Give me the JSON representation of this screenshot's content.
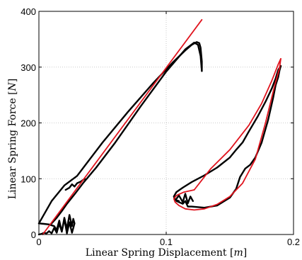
{
  "chart_data": {
    "type": "line",
    "title": "",
    "xlabel": "Linear Spring Displacement [m]",
    "ylabel": "Linear Spring Force [N]",
    "xlabel_parts": {
      "prefix": "Linear Spring Displacement [",
      "unit": "m",
      "suffix": "]"
    },
    "ylabel_parts": {
      "prefix": "Linear Spring Force [",
      "unit": "N",
      "suffix": "]"
    },
    "xlim": [
      0,
      0.2
    ],
    "ylim": [
      0,
      400
    ],
    "xticks": [
      0,
      0.1,
      0.2
    ],
    "xtick_labels": [
      "0",
      "0.1",
      "0.2"
    ],
    "yticks": [
      0,
      100,
      200,
      300,
      400
    ],
    "ytick_labels": [
      "0",
      "100",
      "200",
      "300",
      "400"
    ],
    "grid": true,
    "legend": "none",
    "colors": {
      "measured": "#000000",
      "model": "#e0141e",
      "grid": "#bcbcbc"
    },
    "series": [
      {
        "color": "#e0141e",
        "segments": [
          {
            "x": [
              0.003,
              0.128
            ],
            "y": [
              0,
              385
            ]
          },
          {
            "x": [
              0.122,
              0.135,
              0.15,
              0.165,
              0.175,
              0.183,
              0.188,
              0.19
            ],
            "y": [
              80,
              118,
              152,
              196,
              235,
              276,
              305,
              315
            ]
          },
          {
            "x": [
              0.19,
              0.189,
              0.185,
              0.178,
              0.17,
              0.16,
              0.15,
              0.14,
              0.13,
              0.122,
              0.115,
              0.11,
              0.107,
              0.106,
              0.108,
              0.114,
              0.122
            ],
            "y": [
              315,
              298,
              265,
              200,
              135,
              92,
              68,
              54,
              46,
              44,
              46,
              52,
              58,
              64,
              70,
              76,
              80
            ]
          }
        ]
      },
      {
        "color": "#000000",
        "segments": [
          {
            "x": [
              0,
              0.01,
              0.02,
              0.03,
              0.05,
              0.07,
              0.09,
              0.105,
              0.115,
              0.12,
              0.124,
              0.126,
              0.127,
              0.128,
              0.128
            ],
            "y": [
              20,
              60,
              88,
              105,
              165,
              220,
              272,
              308,
              330,
              340,
              345,
              343,
              335,
              310,
              293
            ]
          },
          {
            "x": [
              0.128,
              0.127,
              0.125,
              0.122,
              0.115,
              0.1,
              0.08,
              0.06,
              0.045,
              0.035,
              0.028,
              0.022,
              0.018,
              0.014,
              0.01
            ],
            "y": [
              293,
              320,
              340,
              344,
              332,
              292,
              230,
              165,
              120,
              93,
              72,
              55,
              42,
              30,
              20
            ]
          },
          {
            "x": [
              0,
              0.004,
              0.008,
              0.012,
              0.014,
              0.016,
              0.018,
              0.02,
              0.022,
              0.024,
              0.026,
              0.027,
              0.028,
              0.026,
              0.024,
              0.022,
              0.02,
              0.018,
              0.016,
              0.014,
              0.012,
              0.01,
              0.008,
              0.006,
              0.004,
              0.002,
              0
            ],
            "y": [
              20,
              19,
              18,
              15,
              8,
              25,
              5,
              30,
              10,
              35,
              15,
              28,
              20,
              3,
              22,
              2,
              28,
              5,
              20,
              3,
              12,
              2,
              6,
              2,
              3,
              1,
              0
            ]
          },
          {
            "x": [
              0.021,
              0.024,
              0.026,
              0.028,
              0.03,
              0.033,
              0.036
            ],
            "y": [
              80,
              84,
              90,
              86,
              92,
              95,
              100
            ]
          },
          {
            "x": [
              0.108,
              0.11,
              0.113,
              0.115,
              0.117,
              0.12,
              0.13,
              0.14,
              0.15,
              0.155,
              0.158,
              0.162,
              0.166,
              0.17,
              0.175,
              0.18,
              0.184,
              0.186,
              0.188,
              0.189,
              0.19
            ],
            "y": [
              60,
              58,
              55,
              60,
              50,
              50,
              48,
              52,
              66,
              82,
              103,
              118,
              125,
              138,
              165,
              205,
              245,
              268,
              282,
              294,
              302
            ]
          },
          {
            "x": [
              0.19,
              0.188,
              0.186,
              0.183,
              0.178,
              0.172,
              0.165,
              0.16,
              0.155,
              0.15,
              0.14,
              0.13,
              0.12,
              0.113,
              0.108,
              0.106,
              0.107,
              0.11
            ],
            "y": [
              302,
              295,
              280,
              262,
              238,
              212,
              185,
              165,
              152,
              138,
              120,
              106,
              94,
              84,
              76,
              68,
              62,
              60
            ]
          },
          {
            "x": [
              0.108,
              0.11,
              0.113,
              0.115,
              0.117,
              0.119,
              0.121
            ],
            "y": [
              64,
              70,
              58,
              73,
              56,
              68,
              60
            ]
          }
        ]
      }
    ]
  }
}
